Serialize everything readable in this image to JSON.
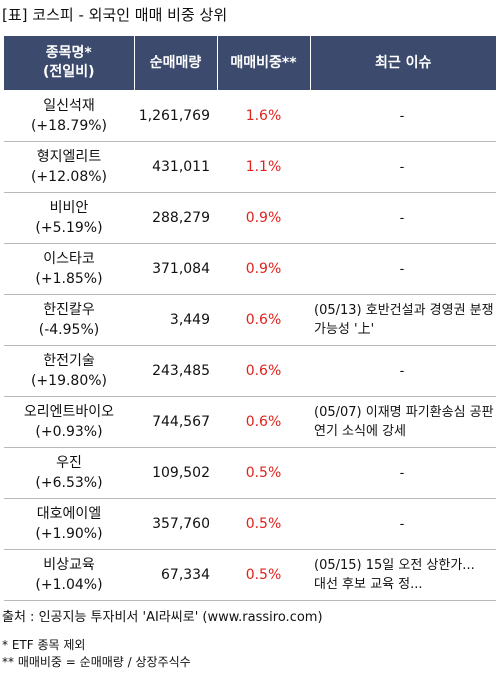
{
  "title": "[표] 코스피 - 외국인 매매 비중 상위",
  "headers": {
    "name_line1": "종목명*",
    "name_line2": "(전일비)",
    "volume": "순매매량",
    "share": "매매비중**",
    "issue": "최근 이슈"
  },
  "rows": [
    {
      "name": "일신석재",
      "change": "(+18.79%)",
      "volume": "1,261,769",
      "share": "1.6%",
      "issue": "-"
    },
    {
      "name": "형지엘리트",
      "change": "(+12.08%)",
      "volume": "431,011",
      "share": "1.1%",
      "issue": "-"
    },
    {
      "name": "비비안",
      "change": "(+5.19%)",
      "volume": "288,279",
      "share": "0.9%",
      "issue": "-"
    },
    {
      "name": "이스타코",
      "change": "(+1.85%)",
      "volume": "371,084",
      "share": "0.9%",
      "issue": "-"
    },
    {
      "name": "한진칼우",
      "change": "(-4.95%)",
      "volume": "3,449",
      "share": "0.6%",
      "issue": "(05/13) 호반건설과 경영권 분쟁 가능성 '上'"
    },
    {
      "name": "한전기술",
      "change": "(+19.80%)",
      "volume": "243,485",
      "share": "0.6%",
      "issue": "-"
    },
    {
      "name": "오리엔트바이오",
      "change": "(+0.93%)",
      "volume": "744,567",
      "share": "0.6%",
      "issue": "(05/07) 이재명 파기환송심 공판 연기 소식에 강세"
    },
    {
      "name": "우진",
      "change": "(+6.53%)",
      "volume": "109,502",
      "share": "0.5%",
      "issue": "-"
    },
    {
      "name": "대호에이엘",
      "change": "(+1.90%)",
      "volume": "357,760",
      "share": "0.5%",
      "issue": "-"
    },
    {
      "name": "비상교육",
      "change": "(+1.04%)",
      "volume": "67,334",
      "share": "0.5%",
      "issue": "(05/15) 15일 오전 상한가... 대선 후보 교육 정..."
    }
  ],
  "source": "출처 : 인공지능 투자비서 'AI라씨로' (www.rassiro.com)",
  "notes": [
    "* ETF 종목 제외",
    "** 매매비중 = 순매매량 / 상장주식수"
  ],
  "colors": {
    "header_bg": "#3c4a6e",
    "header_text": "#ffffff",
    "share_text": "#e0221c",
    "row_divider": "#b8b8b8"
  }
}
